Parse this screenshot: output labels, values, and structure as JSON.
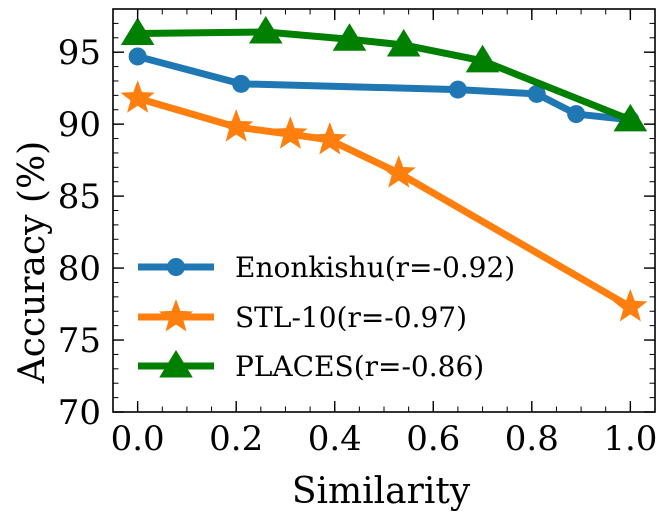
{
  "chart_data": {
    "type": "line",
    "title": "",
    "xlabel": "Similarity",
    "ylabel": "Accuracy (%)",
    "xlim": [
      -0.05,
      1.05
    ],
    "ylim": [
      70,
      98
    ],
    "xticks": [
      0.0,
      0.2,
      0.4,
      0.6,
      0.8,
      1.0
    ],
    "xtick_labels": [
      "0.0",
      "0.2",
      "0.4",
      "0.6",
      "0.8",
      "1.0"
    ],
    "yticks": [
      70,
      75,
      80,
      85,
      90,
      95
    ],
    "ytick_labels": [
      "70",
      "75",
      "80",
      "85",
      "90",
      "95"
    ],
    "legend_position": "lower-left",
    "grid": false,
    "series": [
      {
        "name": "Enonkishu(r=-0.92)",
        "color": "#1f77b4",
        "marker": "circle",
        "x": [
          0.0,
          0.21,
          0.65,
          0.81,
          0.89,
          1.0
        ],
        "y": [
          94.7,
          92.8,
          92.4,
          92.1,
          90.7,
          90.3
        ]
      },
      {
        "name": "STL-10(r=-0.97)",
        "color": "#ff7f0e",
        "marker": "star",
        "x": [
          0.0,
          0.2,
          0.31,
          0.39,
          0.53,
          1.0
        ],
        "y": [
          91.8,
          89.8,
          89.3,
          88.9,
          86.6,
          77.3
        ]
      },
      {
        "name": "PLACES(r=-0.86)",
        "color": "#008000",
        "marker": "triangle",
        "x": [
          0.0,
          0.26,
          0.43,
          0.54,
          0.7,
          1.0
        ],
        "y": [
          96.3,
          96.4,
          95.9,
          95.5,
          94.4,
          90.3
        ]
      }
    ]
  }
}
